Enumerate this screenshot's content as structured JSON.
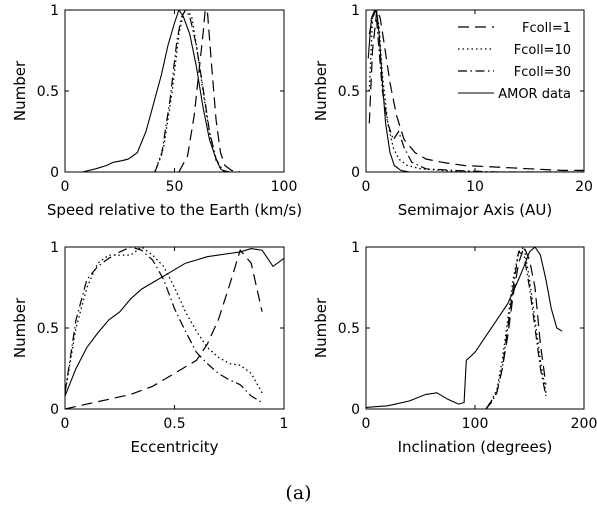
{
  "caption": "(a)",
  "legend_entries": [
    {
      "label": "Fcoll=1",
      "dash": "11,6",
      "width": 1.2
    },
    {
      "label": "Fcoll=10",
      "dash": "1.5,3",
      "width": 1.3
    },
    {
      "label": "Fcoll=30",
      "dash": "9,3.5,1.5,3.5",
      "width": 1.2
    },
    {
      "label": "AMOR data",
      "dash": "",
      "width": 1.1
    }
  ],
  "chart_data": [
    {
      "type": "line",
      "xlabel": "Speed relative to the Earth (km/s)",
      "ylabel": "Number",
      "xlim": [
        0,
        100
      ],
      "ylim": [
        0,
        1
      ],
      "xticks": [
        0,
        50,
        100
      ],
      "yticks": [
        0,
        0.5,
        1
      ],
      "ytick_labels": [
        "0",
        "0.5",
        "1"
      ],
      "grid": false,
      "series": [
        {
          "name": "Fcoll=1",
          "x": [
            52,
            56,
            59,
            61,
            63,
            64,
            65,
            67,
            69,
            71,
            73,
            76,
            80
          ],
          "y": [
            0,
            0.1,
            0.35,
            0.6,
            0.85,
            1.0,
            1.0,
            0.65,
            0.32,
            0.12,
            0.04,
            0.01,
            0
          ]
        },
        {
          "name": "Fcoll=10",
          "x": [
            41,
            45,
            49,
            52,
            54,
            56,
            58,
            60,
            63,
            66,
            69,
            72,
            75
          ],
          "y": [
            0,
            0.15,
            0.5,
            0.85,
            0.98,
            1.0,
            0.95,
            0.78,
            0.5,
            0.24,
            0.07,
            0.01,
            0
          ]
        },
        {
          "name": "Fcoll=30",
          "x": [
            41,
            44,
            48,
            51,
            53,
            55,
            57,
            60,
            63,
            66,
            69,
            72,
            75
          ],
          "y": [
            0,
            0.1,
            0.45,
            0.8,
            0.95,
            1.0,
            0.96,
            0.78,
            0.52,
            0.25,
            0.08,
            0.01,
            0
          ]
        },
        {
          "name": "AMOR data",
          "x": [
            0,
            8,
            14,
            19,
            22,
            26,
            29,
            33,
            37,
            41,
            44,
            47,
            50,
            52,
            54,
            57,
            60,
            63,
            66,
            69,
            71,
            73,
            76
          ],
          "y": [
            0,
            0,
            0.02,
            0.04,
            0.06,
            0.07,
            0.08,
            0.12,
            0.25,
            0.45,
            0.6,
            0.78,
            0.92,
            1.0,
            0.96,
            0.85,
            0.65,
            0.4,
            0.2,
            0.08,
            0.02,
            0,
            0
          ]
        }
      ]
    },
    {
      "type": "line",
      "xlabel": "Semimajor Axis (AU)",
      "ylabel": "Number",
      "xlim": [
        0,
        20
      ],
      "ylim": [
        0,
        1
      ],
      "xticks": [
        0,
        10,
        20
      ],
      "yticks": [
        0,
        0.5,
        1
      ],
      "ytick_labels": [
        "0",
        "0.5",
        "1"
      ],
      "grid": false,
      "series": [
        {
          "name": "Fcoll=1",
          "x": [
            0.3,
            0.6,
            1.0,
            1.3,
            1.7,
            2.2,
            2.8,
            3.5,
            4.5,
            5.5,
            7,
            9,
            12,
            15,
            18,
            20
          ],
          "y": [
            0.3,
            0.75,
            1.0,
            0.95,
            0.78,
            0.55,
            0.35,
            0.2,
            0.12,
            0.08,
            0.06,
            0.04,
            0.03,
            0.02,
            0.01,
            0.01
          ]
        },
        {
          "name": "Fcoll=10",
          "x": [
            0.3,
            0.6,
            0.9,
            1.2,
            1.5,
            2.0,
            2.5,
            3.0,
            3.8,
            5,
            7,
            10,
            15,
            20
          ],
          "y": [
            0.5,
            0.95,
            1.0,
            0.9,
            0.6,
            0.3,
            0.15,
            0.08,
            0.04,
            0.02,
            0.01,
            0,
            0,
            0
          ]
        },
        {
          "name": "Fcoll=30",
          "x": [
            0.3,
            0.6,
            0.9,
            1.2,
            1.5,
            2.0,
            2.5,
            3.0,
            3.5,
            4.2,
            5.5,
            8,
            12,
            20
          ],
          "y": [
            0.85,
            0.95,
            1.0,
            0.75,
            0.5,
            0.3,
            0.2,
            0.25,
            0.15,
            0.06,
            0.02,
            0.01,
            0,
            0
          ]
        },
        {
          "name": "AMOR data",
          "x": [
            0.2,
            0.5,
            0.8,
            1.0,
            1.2,
            1.5,
            1.8,
            2.2,
            2.6,
            3.2,
            4,
            6,
            10,
            20
          ],
          "y": [
            0.7,
            0.95,
            1.0,
            0.98,
            0.85,
            0.55,
            0.3,
            0.12,
            0.04,
            0.01,
            0,
            0,
            0,
            0
          ]
        }
      ]
    },
    {
      "type": "line",
      "xlabel": "Eccentricity",
      "ylabel": "Number",
      "xlim": [
        0,
        1
      ],
      "ylim": [
        0,
        1
      ],
      "xticks": [
        0,
        0.5,
        1
      ],
      "yticks": [
        0,
        0.5,
        1
      ],
      "ytick_labels": [
        "0",
        "0.5",
        "1"
      ],
      "grid": false,
      "series": [
        {
          "name": "Fcoll=1",
          "x": [
            0.0,
            0.1,
            0.2,
            0.3,
            0.4,
            0.5,
            0.55,
            0.6,
            0.65,
            0.7,
            0.75,
            0.8,
            0.85,
            0.9
          ],
          "y": [
            0.0,
            0.03,
            0.06,
            0.09,
            0.14,
            0.22,
            0.26,
            0.3,
            0.4,
            0.55,
            0.76,
            0.98,
            0.9,
            0.6
          ]
        },
        {
          "name": "Fcoll=10",
          "x": [
            0.0,
            0.05,
            0.1,
            0.15,
            0.2,
            0.25,
            0.3,
            0.35,
            0.4,
            0.45,
            0.5,
            0.55,
            0.6,
            0.65,
            0.7,
            0.75,
            0.8,
            0.85,
            0.9
          ],
          "y": [
            0.1,
            0.5,
            0.75,
            0.9,
            0.95,
            0.95,
            0.95,
            1.0,
            0.95,
            0.88,
            0.75,
            0.6,
            0.48,
            0.38,
            0.32,
            0.28,
            0.27,
            0.22,
            0.1
          ]
        },
        {
          "name": "Fcoll=30",
          "x": [
            0.0,
            0.05,
            0.1,
            0.15,
            0.2,
            0.25,
            0.3,
            0.35,
            0.4,
            0.45,
            0.5,
            0.55,
            0.6,
            0.65,
            0.7,
            0.75,
            0.8,
            0.85,
            0.9
          ],
          "y": [
            0.1,
            0.55,
            0.8,
            0.88,
            0.93,
            0.97,
            1.0,
            0.98,
            0.92,
            0.8,
            0.62,
            0.48,
            0.35,
            0.28,
            0.22,
            0.18,
            0.15,
            0.08,
            0.04
          ]
        },
        {
          "name": "AMOR data",
          "x": [
            0.0,
            0.05,
            0.1,
            0.15,
            0.2,
            0.25,
            0.3,
            0.35,
            0.4,
            0.45,
            0.5,
            0.55,
            0.6,
            0.65,
            0.7,
            0.75,
            0.8,
            0.85,
            0.9,
            0.95,
            1.0
          ],
          "y": [
            0.08,
            0.25,
            0.38,
            0.47,
            0.55,
            0.6,
            0.68,
            0.74,
            0.78,
            0.82,
            0.86,
            0.9,
            0.92,
            0.94,
            0.95,
            0.96,
            0.97,
            0.99,
            0.98,
            0.88,
            0.93
          ]
        }
      ]
    },
    {
      "type": "line",
      "xlabel": "Inclination (degrees)",
      "ylabel": "Number",
      "xlim": [
        0,
        200
      ],
      "ylim": [
        0,
        1
      ],
      "xticks": [
        0,
        100,
        200
      ],
      "yticks": [
        0,
        0.5,
        1
      ],
      "ytick_labels": [
        "0",
        "0.5",
        "1"
      ],
      "grid": false,
      "series": [
        {
          "name": "Fcoll=1",
          "x": [
            110,
            115,
            120,
            125,
            130,
            135,
            140,
            145,
            150,
            155,
            160,
            165
          ],
          "y": [
            0,
            0.05,
            0.1,
            0.25,
            0.45,
            0.7,
            0.9,
            1.0,
            0.92,
            0.75,
            0.4,
            0.15
          ]
        },
        {
          "name": "Fcoll=10",
          "x": [
            110,
            115,
            120,
            125,
            130,
            135,
            140,
            145,
            150,
            155,
            160,
            165
          ],
          "y": [
            0,
            0.05,
            0.12,
            0.3,
            0.55,
            0.8,
            0.97,
            1.0,
            0.8,
            0.55,
            0.3,
            0.1
          ]
        },
        {
          "name": "Fcoll=30",
          "x": [
            110,
            115,
            120,
            125,
            130,
            135,
            140,
            145,
            150,
            155,
            160,
            165
          ],
          "y": [
            0,
            0.04,
            0.1,
            0.25,
            0.5,
            0.75,
            0.97,
            0.95,
            0.75,
            0.5,
            0.25,
            0.08
          ]
        },
        {
          "name": "AMOR data",
          "x": [
            0,
            20,
            40,
            55,
            65,
            75,
            85,
            90,
            92,
            100,
            110,
            120,
            130,
            140,
            145,
            150,
            155,
            160,
            165,
            170,
            175,
            180
          ],
          "y": [
            0.01,
            0.02,
            0.05,
            0.09,
            0.1,
            0.06,
            0.03,
            0.04,
            0.3,
            0.35,
            0.45,
            0.55,
            0.65,
            0.8,
            0.88,
            0.97,
            1.0,
            0.95,
            0.8,
            0.62,
            0.5,
            0.48
          ]
        }
      ]
    }
  ]
}
